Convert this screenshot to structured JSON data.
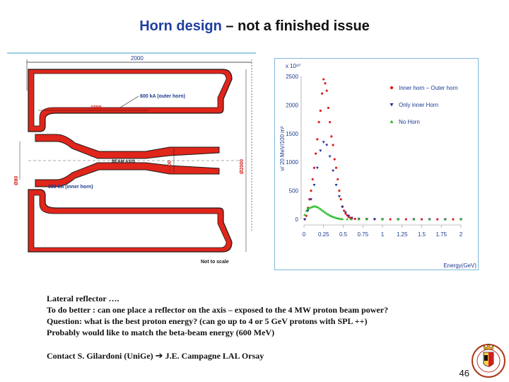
{
  "slide": {
    "title_part1": "Horn design",
    "title_part2": " – not a finished issue",
    "page_number": "46"
  },
  "horn_diagram": {
    "dim_2000": "2000",
    "label_600ka": "600 kA (outer horn)",
    "dim_1000": "1000",
    "beam_axis": "BEAM AXIS",
    "dim_phi800": "Ø800",
    "dim_phi2000": "Ø2000",
    "dim_phi80": "Ø80",
    "label_300ka": "300 kA (inner horn)",
    "not_to_scale": "Not to scale",
    "colors": {
      "outline": "#1a1a1a",
      "fill": "#e0251b",
      "dim_text": "#d0201a",
      "label_text": "#1a3a8f",
      "rule": "#3f98c8"
    }
  },
  "chart_data": {
    "type": "scatter",
    "title": "",
    "xlabel": "Energy(GeV)",
    "ylabel": "ν/ 20 MeV/100 m²",
    "y_multiplier": "x 10¹⁰",
    "xlim": [
      0,
      2
    ],
    "ylim": [
      0,
      2500
    ],
    "x_ticks": [
      "0",
      "0.25",
      "0.5",
      "0.75",
      "1",
      "1.25",
      "1.5",
      "1.75",
      "2"
    ],
    "y_ticks": [
      "0",
      "500",
      "1000",
      "1500",
      "2000",
      "2500"
    ],
    "legend_position": "top-right",
    "series": [
      {
        "name": "Inner horn – Outer horn",
        "color": "#e0201e",
        "marker": "circle",
        "x": [
          0.01,
          0.03,
          0.05,
          0.07,
          0.09,
          0.11,
          0.13,
          0.15,
          0.17,
          0.19,
          0.21,
          0.23,
          0.25,
          0.27,
          0.29,
          0.31,
          0.33,
          0.35,
          0.37,
          0.39,
          0.41,
          0.43,
          0.45,
          0.47,
          0.49,
          0.51,
          0.53,
          0.55,
          0.57,
          0.59,
          0.61,
          0.65,
          0.7,
          0.8,
          0.9,
          1.0,
          1.1,
          1.2,
          1.3,
          1.4,
          1.5,
          1.6,
          1.7,
          1.8,
          1.9,
          2.0
        ],
        "y": [
          0,
          60,
          200,
          350,
          500,
          700,
          900,
          1150,
          1400,
          1700,
          1900,
          2200,
          2450,
          2380,
          2250,
          1950,
          1700,
          1450,
          1300,
          1050,
          900,
          700,
          500,
          350,
          220,
          150,
          100,
          70,
          40,
          25,
          15,
          8,
          4,
          2,
          1,
          0,
          0,
          0,
          0,
          0,
          0,
          0,
          0,
          0,
          0,
          0
        ]
      },
      {
        "name": "Only inner Horn",
        "color": "#1f2f9f",
        "marker": "triangle-down",
        "x": [
          0.01,
          0.05,
          0.09,
          0.13,
          0.17,
          0.21,
          0.25,
          0.29,
          0.33,
          0.37,
          0.41,
          0.45,
          0.49,
          0.53,
          0.57,
          0.61,
          0.7,
          0.8,
          0.9,
          1.0,
          1.2,
          1.4,
          1.6,
          1.8,
          2.0
        ],
        "y": [
          0,
          150,
          350,
          600,
          900,
          1200,
          1350,
          1300,
          1100,
          850,
          600,
          400,
          220,
          120,
          60,
          25,
          8,
          3,
          1,
          0,
          0,
          0,
          0,
          0,
          0
        ]
      },
      {
        "name": "No Horn",
        "color": "#2fbf2f",
        "marker": "triangle-up",
        "x": [
          0.01,
          0.03,
          0.05,
          0.07,
          0.09,
          0.11,
          0.13,
          0.15,
          0.17,
          0.19,
          0.21,
          0.23,
          0.25,
          0.27,
          0.29,
          0.31,
          0.33,
          0.35,
          0.37,
          0.39,
          0.41,
          0.43,
          0.45,
          0.47,
          0.49,
          0.55,
          0.6,
          0.7,
          0.8,
          1.0,
          1.2,
          1.4,
          1.6,
          1.8,
          2.0
        ],
        "y": [
          80,
          150,
          190,
          200,
          210,
          220,
          230,
          225,
          215,
          200,
          180,
          160,
          140,
          120,
          100,
          85,
          70,
          55,
          45,
          35,
          25,
          18,
          12,
          8,
          5,
          3,
          2,
          1,
          0,
          0,
          0,
          0,
          0,
          0,
          0
        ]
      }
    ]
  },
  "notes": {
    "line1": "Lateral reflector ….",
    "line2": "To do better : can one place a reflector on the axis – exposed to the 4 MW proton beam power?",
    "line3": "Question:   what is the best proton energy? (can go up to 4 or 5 GeV protons with SPL ++)",
    "line4": "Probably would like to match the beta-beam energy (600 MeV)"
  },
  "contact": {
    "part1": "Contact S. Gilardoni (UniGe) ",
    "arrow": "➔",
    "part2": " J.E. Campagne LAL Orsay"
  }
}
